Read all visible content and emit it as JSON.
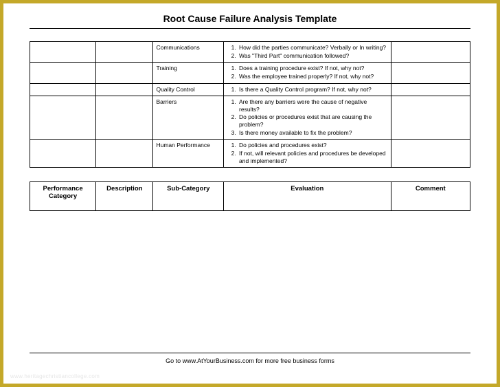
{
  "title": "Root Cause Failure Analysis Template",
  "rows": [
    {
      "sub": "Communications",
      "questions": [
        "How did the parties communicate? Verbally or In writing?",
        "Was \"Third Part\" communication followed?"
      ]
    },
    {
      "sub": "Training",
      "questions": [
        "Does a training procedure exist? If not, why not?",
        "Was the employee trained properly? If not, why not?"
      ]
    },
    {
      "sub": "Quality Control",
      "questions": [
        "Is there a Quality Control program? If not, why not?"
      ]
    },
    {
      "sub": "Barriers",
      "questions": [
        "Are there any barriers were the cause of negative results?",
        "Do policies or procedures exist that are causing the problem?",
        "Is there money available to fix the problem?"
      ]
    },
    {
      "sub": "Human Performance",
      "questions": [
        "Do policies and procedures exist?",
        "If not, will relevant policies and procedures be developed and implemented?"
      ]
    }
  ],
  "headers": {
    "c1": "Performance Category",
    "c2": "Description",
    "c3": "Sub-Category",
    "c4": "Evaluation",
    "c5": "Comment"
  },
  "footer": "Go to www.AtYourBusiness.com for more free business forms",
  "watermark": "www.heritagechristiancollege.com"
}
